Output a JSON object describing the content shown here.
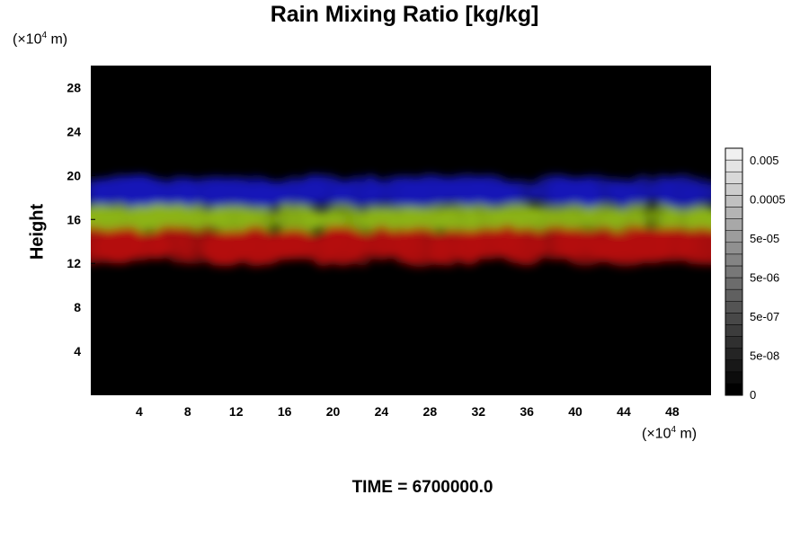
{
  "chart_data": {
    "type": "heatmap",
    "title": "Rain Mixing Ratio [kg/kg]",
    "ylabel": "Height",
    "x_unit": {
      "prefix": "(×10",
      "exp": "4",
      "suffix": " m)"
    },
    "y_unit": {
      "prefix": "(×10",
      "exp": "4",
      "suffix": " m)"
    },
    "xlim": [
      0,
      51.2
    ],
    "ylim": [
      0,
      30
    ],
    "x_ticks": [
      4,
      8,
      12,
      16,
      20,
      24,
      28,
      32,
      36,
      40,
      44,
      48
    ],
    "y_ticks": [
      4,
      8,
      12,
      16,
      20,
      24,
      28
    ],
    "colorbar": {
      "labels": [
        "0.005",
        "0.0005",
        "5e-05",
        "5e-06",
        "5e-07",
        "5e-08",
        "0"
      ],
      "levels": 21,
      "colors": {
        "low": "#000000",
        "high": "#f0f0f0"
      }
    },
    "layers": [
      {
        "color": "#1818b8",
        "y_range": [
          17.2,
          19.8
        ]
      },
      {
        "color": "#8cb414",
        "y_range": [
          14.8,
          17.2
        ]
      },
      {
        "color": "#b40c0c",
        "y_range": [
          12.0,
          15.2
        ]
      }
    ],
    "background": "#000000"
  },
  "footer": {
    "time": "TIME = 6700000.0"
  }
}
